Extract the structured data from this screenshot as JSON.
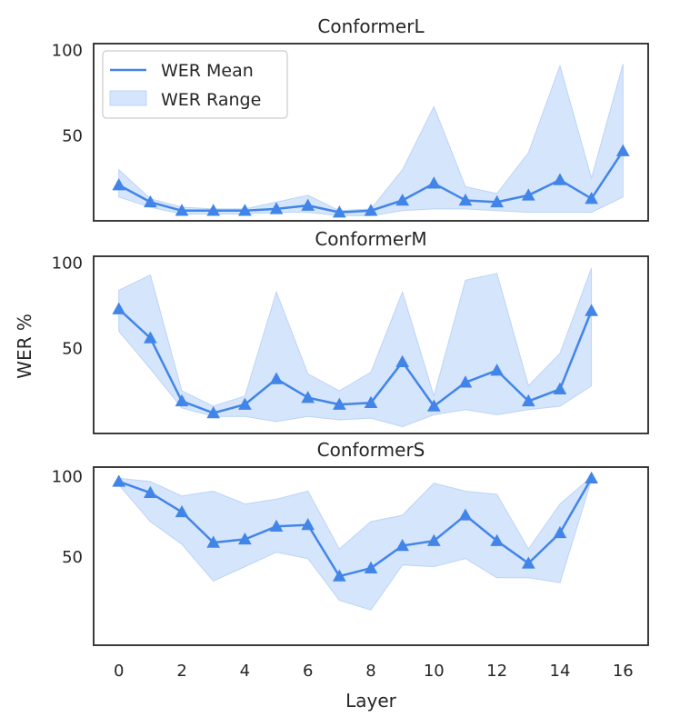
{
  "chart_data": {
    "type": "line",
    "xlabel": "Layer",
    "ylabel": "WER %",
    "xlim": [
      -0.8,
      16.8
    ],
    "x_ticks": [
      "0",
      "2",
      "4",
      "6",
      "8",
      "10",
      "12",
      "14",
      "16"
    ],
    "y_ticks": [
      "50",
      "100"
    ],
    "legend": {
      "position": "top-left",
      "mean_label": "WER Mean",
      "range_label": "WER Range"
    },
    "colors": {
      "line": "#4285e8",
      "band_fill": "#d5e5fb",
      "band_edge": "#bcd4f7",
      "frame": "#262626"
    },
    "panels": [
      {
        "title": "ConformerL",
        "ylim": [
          0,
          104
        ],
        "x": [
          0,
          1,
          2,
          3,
          4,
          5,
          6,
          7,
          8,
          9,
          10,
          11,
          12,
          13,
          14,
          15,
          16
        ],
        "mean": [
          21,
          11,
          6,
          6,
          6,
          7,
          9,
          5,
          6,
          12,
          22,
          12,
          11,
          15,
          24,
          13,
          41
        ],
        "min": [
          14,
          8,
          4,
          4,
          4,
          5,
          5,
          3,
          3,
          6,
          7,
          7,
          6,
          5,
          5,
          5,
          14
        ],
        "max": [
          30,
          13,
          8,
          7,
          7,
          11,
          15,
          6,
          7,
          30,
          67,
          20,
          16,
          40,
          91,
          25,
          92
        ]
      },
      {
        "title": "ConformerM",
        "ylim": [
          0,
          104
        ],
        "x": [
          0,
          1,
          2,
          3,
          4,
          5,
          6,
          7,
          8,
          9,
          10,
          11,
          12,
          13,
          14,
          15
        ],
        "mean": [
          73,
          56,
          19,
          12,
          17,
          32,
          21,
          17,
          18,
          42,
          16,
          30,
          37,
          19,
          26,
          72
        ],
        "min": [
          60,
          38,
          15,
          10,
          10,
          7,
          10,
          8,
          9,
          4,
          11,
          14,
          11,
          14,
          16,
          28
        ],
        "max": [
          84,
          93,
          25,
          16,
          22,
          83,
          35,
          25,
          36,
          83,
          22,
          90,
          94,
          28,
          47,
          97
        ]
      },
      {
        "title": "ConformerS",
        "ylim": [
          -5,
          106
        ],
        "x": [
          0,
          1,
          2,
          3,
          4,
          5,
          6,
          7,
          8,
          9,
          10,
          11,
          12,
          13,
          14,
          15
        ],
        "mean": [
          97,
          90,
          78,
          59,
          61,
          69,
          70,
          38,
          43,
          57,
          60,
          76,
          60,
          46,
          65,
          99
        ],
        "min": [
          95,
          72,
          58,
          35,
          44,
          53,
          49,
          23,
          17,
          45,
          44,
          49,
          37,
          37,
          34,
          98
        ],
        "max": [
          99,
          97,
          88,
          91,
          83,
          86,
          91,
          55,
          72,
          76,
          96,
          91,
          89,
          55,
          83,
          100
        ]
      }
    ]
  }
}
